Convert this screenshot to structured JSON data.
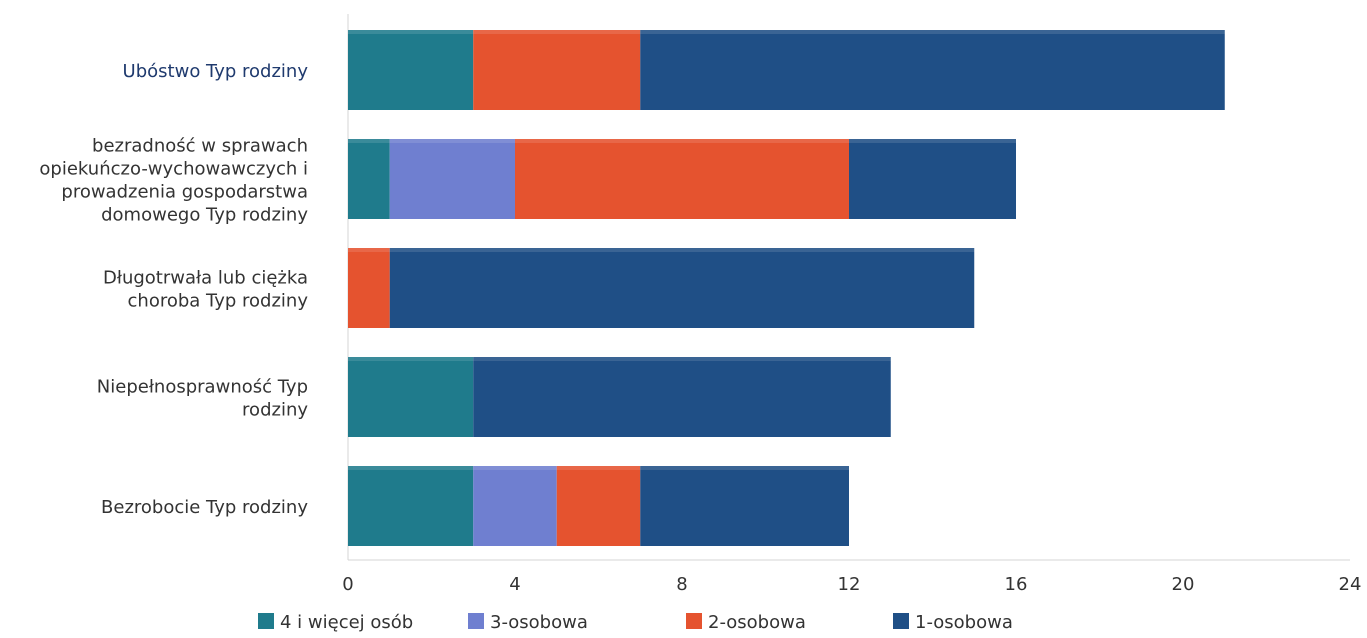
{
  "chart_data": {
    "type": "bar",
    "orientation": "horizontal",
    "stacked": true,
    "categories": [
      "Ubóstwo Typ rodziny",
      "bezradność w sprawach opiekuńczo-wychowawczych i prowadzenia gospodarstwa domowego Typ rodziny",
      "Długotrwała lub ciężka choroba Typ rodziny",
      "Niepełnosprawność Typ rodziny",
      "Bezrobocie Typ rodziny"
    ],
    "category_lines": [
      [
        "Ubóstwo Typ rodziny"
      ],
      [
        "bezradność w sprawach",
        "opiekuńczo-wychowawczych i",
        "prowadzenia gospodarstwa",
        "domowego Typ rodziny"
      ],
      [
        "Długotrwała lub ciężka",
        "choroba Typ rodziny"
      ],
      [
        "Niepełnosprawność Typ",
        "rodziny"
      ],
      [
        "Bezrobocie Typ rodziny"
      ]
    ],
    "series": [
      {
        "name": "4  i więcej osób",
        "color": "#1f7b8c",
        "values": [
          3,
          1,
          0,
          3,
          3
        ]
      },
      {
        "name": "3-osobowa",
        "color": "#6f7fd0",
        "values": [
          0,
          3,
          0,
          0,
          2
        ]
      },
      {
        "name": "2-osobowa",
        "color": "#e5532f",
        "values": [
          4,
          8,
          1,
          0,
          2
        ]
      },
      {
        "name": "1-osobowa",
        "color": "#1f4f86",
        "values": [
          14,
          4,
          14,
          10,
          5
        ]
      }
    ],
    "xlim": [
      0,
      24
    ],
    "x_ticks": [
      "0",
      "4",
      "8",
      "12",
      "16",
      "20",
      "24"
    ],
    "title": "",
    "xlabel": "",
    "ylabel": "",
    "legend_position": "bottom",
    "grid": false
  }
}
